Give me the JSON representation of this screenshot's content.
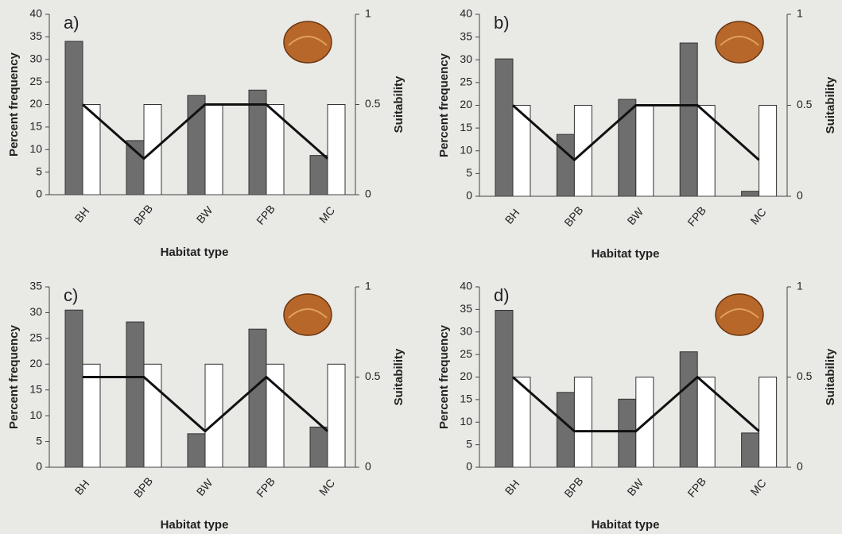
{
  "chart_data": [
    {
      "type": "bar",
      "panel_label": "a)",
      "y_label": "Percent frequency",
      "y2_label": "Suitability",
      "x_label": "Habitat type",
      "categories": [
        "BH",
        "BPB",
        "BW",
        "FPB",
        "MC"
      ],
      "series": [
        {
          "color": "#6e6e6e",
          "values": [
            34,
            12,
            22,
            23.2,
            8.7
          ]
        },
        {
          "color": "#ffffff",
          "values": [
            20,
            20,
            20,
            20,
            20
          ]
        },
        {
          "color": "#111111",
          "type": "line",
          "axis": "y2",
          "values": [
            0.5,
            0.2,
            0.5,
            0.5,
            0.2
          ]
        }
      ],
      "ylim": [
        0,
        40
      ],
      "yticks": [
        0,
        5,
        10,
        15,
        20,
        25,
        30,
        35,
        40
      ],
      "y2lim": [
        0,
        1
      ],
      "y2ticks": [
        0,
        0.5,
        1
      ]
    },
    {
      "type": "bar",
      "panel_label": "b)",
      "y_label": "Percent frequency",
      "y2_label": "Suitability",
      "x_label": "Habitat type",
      "categories": [
        "BH",
        "BPB",
        "BW",
        "FPB",
        "MC"
      ],
      "series": [
        {
          "color": "#6e6e6e",
          "values": [
            30.2,
            13.6,
            21.3,
            33.7,
            1.1
          ]
        },
        {
          "color": "#ffffff",
          "values": [
            20,
            20,
            20,
            20,
            20
          ]
        },
        {
          "color": "#111111",
          "type": "line",
          "axis": "y2",
          "values": [
            0.5,
            0.2,
            0.5,
            0.5,
            0.2
          ]
        }
      ],
      "ylim": [
        0,
        40
      ],
      "yticks": [
        0,
        5,
        10,
        15,
        20,
        25,
        30,
        35,
        40
      ],
      "y2lim": [
        0,
        1
      ],
      "y2ticks": [
        0,
        0.5,
        1
      ]
    },
    {
      "type": "bar",
      "panel_label": "c)",
      "y_label": "Percent frequency",
      "y2_label": "Suitability",
      "x_label": "Habitat type",
      "categories": [
        "BH",
        "BPB",
        "BW",
        "FPB",
        "MC"
      ],
      "series": [
        {
          "color": "#6e6e6e",
          "values": [
            30.5,
            28.2,
            6.5,
            26.8,
            7.8
          ]
        },
        {
          "color": "#ffffff",
          "values": [
            20,
            20,
            20,
            20,
            20
          ]
        },
        {
          "color": "#111111",
          "type": "line",
          "axis": "y2",
          "values": [
            0.5,
            0.5,
            0.2,
            0.5,
            0.2
          ]
        }
      ],
      "ylim": [
        0,
        35
      ],
      "yticks": [
        0,
        5,
        10,
        15,
        20,
        25,
        30,
        35
      ],
      "y2lim": [
        0,
        1
      ],
      "y2ticks": [
        0,
        0.5,
        1
      ]
    },
    {
      "type": "bar",
      "panel_label": "d)",
      "y_label": "Percent frequency",
      "y2_label": "Suitability",
      "x_label": "Habitat type",
      "categories": [
        "BH",
        "BPB",
        "BW",
        "FPB",
        "MC"
      ],
      "series": [
        {
          "color": "#6e6e6e",
          "values": [
            34.8,
            16.6,
            15.1,
            25.6,
            7.6
          ]
        },
        {
          "color": "#ffffff",
          "values": [
            20,
            20,
            20,
            20,
            20
          ]
        },
        {
          "color": "#111111",
          "type": "line",
          "axis": "y2",
          "values": [
            0.5,
            0.2,
            0.2,
            0.5,
            0.2
          ]
        }
      ],
      "ylim": [
        0,
        40
      ],
      "yticks": [
        0,
        5,
        10,
        15,
        20,
        25,
        30,
        35,
        40
      ],
      "y2lim": [
        0,
        1
      ],
      "y2ticks": [
        0,
        0.5,
        1
      ]
    }
  ]
}
